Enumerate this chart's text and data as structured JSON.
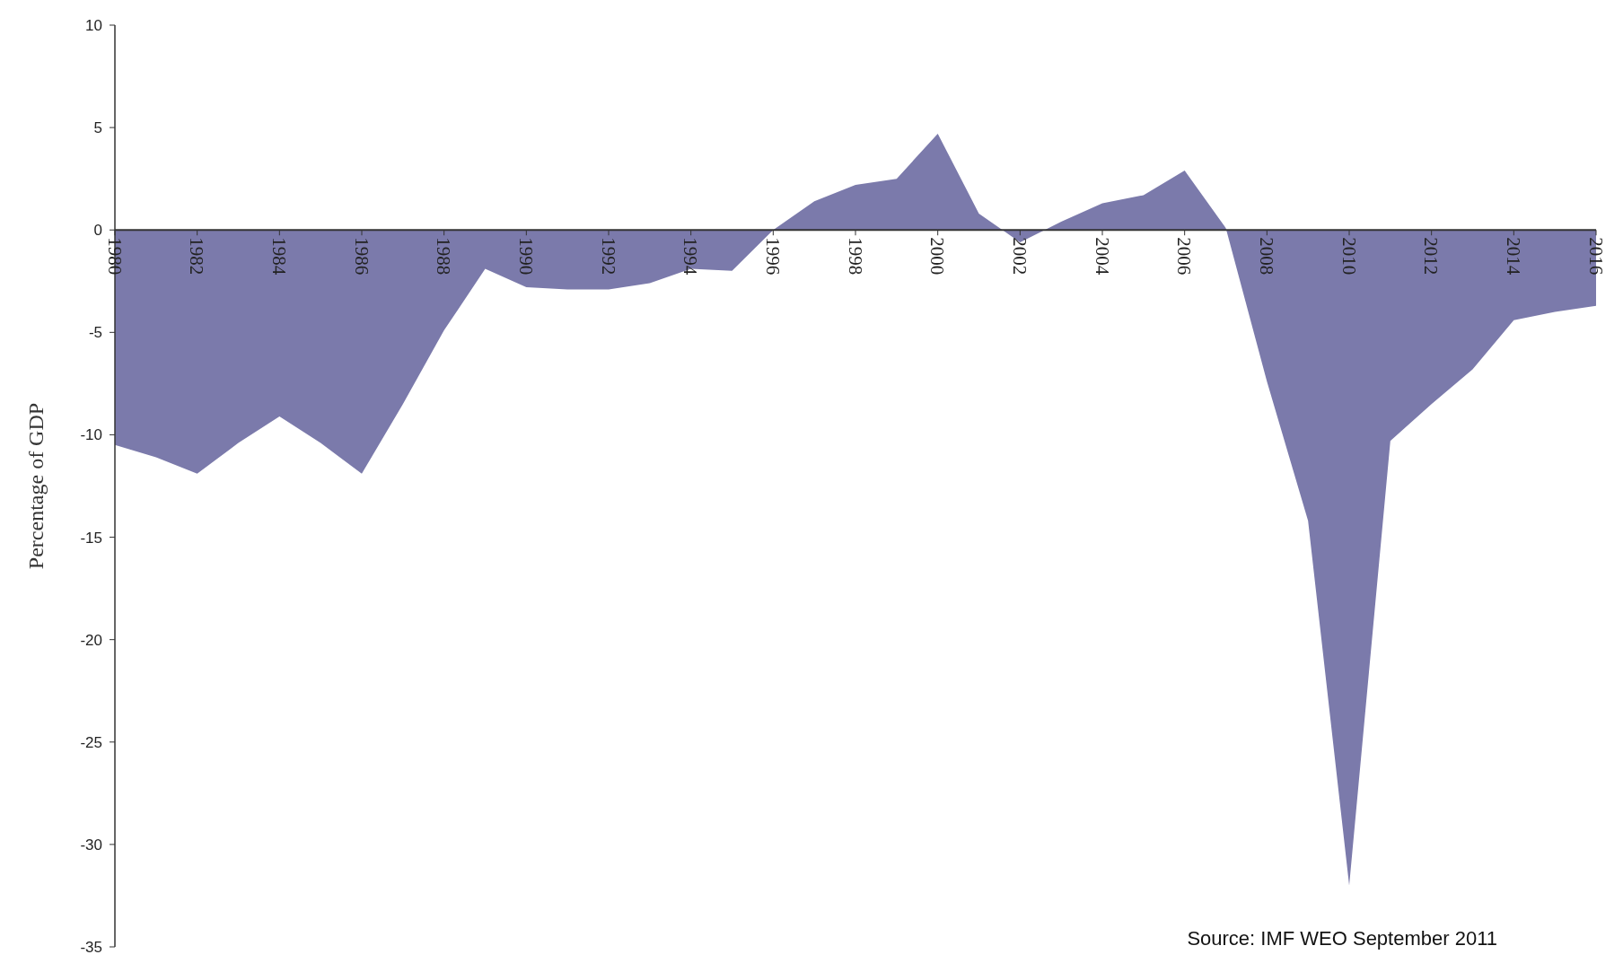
{
  "chart_data": {
    "type": "area",
    "ylabel": "Percentage of GDP",
    "annotations": [
      "Source: IMF WEO September 2011"
    ],
    "x": [
      1980,
      1981,
      1982,
      1983,
      1984,
      1985,
      1986,
      1987,
      1988,
      1989,
      1990,
      1991,
      1992,
      1993,
      1994,
      1995,
      1996,
      1997,
      1998,
      1999,
      2000,
      2001,
      2002,
      2003,
      2004,
      2005,
      2006,
      2007,
      2008,
      2009,
      2010,
      2011,
      2012,
      2013,
      2014,
      2015,
      2016
    ],
    "series": [
      {
        "color": "#7b7aab",
        "values": [
          -10.5,
          -11.1,
          -11.9,
          -10.4,
          -9.1,
          -10.4,
          -11.9,
          -8.5,
          -4.9,
          -1.9,
          -2.8,
          -2.9,
          -2.9,
          -2.6,
          -1.9,
          -2.0,
          0,
          1.4,
          2.2,
          2.5,
          4.7,
          0.8,
          -0.6,
          0.4,
          1.3,
          1.7,
          2.9,
          0.1,
          -7.4,
          -14.2,
          -32,
          -10.3,
          -8.5,
          -6.8,
          -4.4,
          -4.0,
          -3.7
        ]
      }
    ],
    "xlim": [
      1980,
      2016
    ],
    "xticks": [
      1980,
      1982,
      1984,
      1986,
      1988,
      1990,
      1992,
      1994,
      1996,
      1998,
      2000,
      2002,
      2004,
      2006,
      2008,
      2010,
      2012,
      2014,
      2016
    ],
    "ylim": [
      -35,
      10
    ],
    "yticks": [
      -35,
      -30,
      -25,
      -20,
      -15,
      -10,
      -5,
      0,
      5,
      10
    ]
  }
}
